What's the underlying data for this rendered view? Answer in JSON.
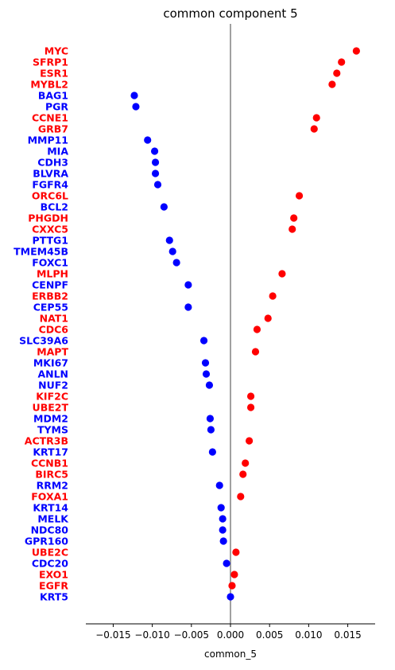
{
  "chart_data": {
    "type": "scatter",
    "title": "common component 5",
    "xlabel": "common_5",
    "ylabel": "",
    "xlim": [
      -0.0185,
      0.0185
    ],
    "xticks": [
      -0.015,
      -0.01,
      -0.005,
      0.0,
      0.005,
      0.01,
      0.015
    ],
    "xtick_labels": [
      "−0.015",
      "−0.010",
      "−0.005",
      "0.000",
      "0.005",
      "0.010",
      "0.015"
    ],
    "zero_line": true,
    "grid": false,
    "colors": {
      "positive": "#ff0000",
      "negative": "#0000ff",
      "zero_line": "#808080",
      "axis": "#000000"
    },
    "points": [
      {
        "gene": "MYC",
        "value": 0.0161
      },
      {
        "gene": "SFRP1",
        "value": 0.0142
      },
      {
        "gene": "ESR1",
        "value": 0.0136
      },
      {
        "gene": "MYBL2",
        "value": 0.013
      },
      {
        "gene": "BAG1",
        "value": -0.0123
      },
      {
        "gene": "PGR",
        "value": -0.0121
      },
      {
        "gene": "CCNE1",
        "value": 0.011
      },
      {
        "gene": "GRB7",
        "value": 0.0107
      },
      {
        "gene": "MMP11",
        "value": -0.0106
      },
      {
        "gene": "MIA",
        "value": -0.0097
      },
      {
        "gene": "CDH3",
        "value": -0.0096
      },
      {
        "gene": "BLVRA",
        "value": -0.0096
      },
      {
        "gene": "FGFR4",
        "value": -0.0093
      },
      {
        "gene": "ORC6L",
        "value": 0.0088
      },
      {
        "gene": "BCL2",
        "value": -0.0085
      },
      {
        "gene": "PHGDH",
        "value": 0.0081
      },
      {
        "gene": "CXXC5",
        "value": 0.0079
      },
      {
        "gene": "PTTG1",
        "value": -0.0078
      },
      {
        "gene": "TMEM45B",
        "value": -0.0074
      },
      {
        "gene": "FOXC1",
        "value": -0.0069
      },
      {
        "gene": "MLPH",
        "value": 0.0066
      },
      {
        "gene": "CENPF",
        "value": -0.0054
      },
      {
        "gene": "ERBB2",
        "value": 0.0054
      },
      {
        "gene": "CEP55",
        "value": -0.0054
      },
      {
        "gene": "NAT1",
        "value": 0.0048
      },
      {
        "gene": "CDC6",
        "value": 0.0034
      },
      {
        "gene": "SLC39A6",
        "value": -0.0034
      },
      {
        "gene": "MAPT",
        "value": 0.0032
      },
      {
        "gene": "MKI67",
        "value": -0.0032
      },
      {
        "gene": "ANLN",
        "value": -0.0031
      },
      {
        "gene": "NUF2",
        "value": -0.0027
      },
      {
        "gene": "KIF2C",
        "value": 0.0026
      },
      {
        "gene": "UBE2T",
        "value": 0.0026
      },
      {
        "gene": "MDM2",
        "value": -0.0026
      },
      {
        "gene": "TYMS",
        "value": -0.0025
      },
      {
        "gene": "ACTR3B",
        "value": 0.0024
      },
      {
        "gene": "KRT17",
        "value": -0.0023
      },
      {
        "gene": "CCNB1",
        "value": 0.0019
      },
      {
        "gene": "BIRC5",
        "value": 0.0016
      },
      {
        "gene": "RRM2",
        "value": -0.0014
      },
      {
        "gene": "FOXA1",
        "value": 0.0013
      },
      {
        "gene": "KRT14",
        "value": -0.0012
      },
      {
        "gene": "MELK",
        "value": -0.001
      },
      {
        "gene": "NDC80",
        "value": -0.001
      },
      {
        "gene": "GPR160",
        "value": -0.0009
      },
      {
        "gene": "UBE2C",
        "value": 0.0007
      },
      {
        "gene": "CDC20",
        "value": -0.0005
      },
      {
        "gene": "EXO1",
        "value": 0.0005
      },
      {
        "gene": "EGFR",
        "value": 0.0002
      },
      {
        "gene": "KRT5",
        "value": 0.0
      }
    ]
  }
}
